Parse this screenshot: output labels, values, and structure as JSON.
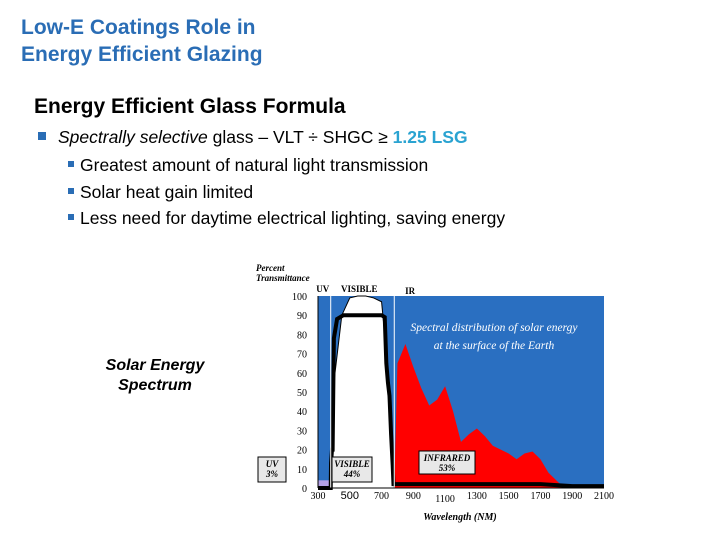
{
  "slide": {
    "title_line1": "Low-E Coatings Role in",
    "title_line2": "Energy Efficient Glazing"
  },
  "formula": {
    "heading": "Energy Efficient Glass Formula",
    "main_bullet": {
      "italic": "Spectrally selective",
      "text": " glass – VLT ÷ SHGC ≥ ",
      "highlight": "1.25 LSG"
    },
    "sub_bullets": [
      "Greatest amount of natural light transmission",
      "Solar heat gain limited",
      "Less need for daytime electrical lighting, saving energy"
    ]
  },
  "spectrum_label": {
    "line1": "Solar Energy",
    "line2": "Spectrum"
  },
  "colors": {
    "title": "#2a6db5",
    "bullet": "#2a6db5",
    "lsg": "#2aa3d1",
    "plot_background": "#2a6fc1",
    "solar_distribution": "#ff0000",
    "uv_band": "#b3a0e6",
    "transmittance_line": "#000000"
  },
  "chart_data": {
    "type": "area",
    "ylabel": "Percent Transmittance",
    "xlabel": "Wavelength (NM)",
    "ylim": [
      0,
      100
    ],
    "xlim": [
      300,
      2100
    ],
    "y_ticks": [
      "0",
      "10",
      "20",
      "30",
      "40",
      "50",
      "60",
      "70",
      "80",
      "90",
      "100"
    ],
    "x_ticks": [
      {
        "value": 300,
        "label": "300"
      },
      {
        "value": 500,
        "label": "500"
      },
      {
        "value": 700,
        "label": "700"
      },
      {
        "value": 900,
        "label": "900"
      },
      {
        "value": 1100,
        "label": "1100"
      },
      {
        "value": 1300,
        "label": "1300"
      },
      {
        "value": 1500,
        "label": "1500"
      },
      {
        "value": 1700,
        "label": "1700"
      },
      {
        "value": 1900,
        "label": "1900"
      },
      {
        "value": 2100,
        "label": "2100"
      }
    ],
    "band_labels": {
      "uv": "UV",
      "visible": "VISIBLE",
      "ir": "IR"
    },
    "band_boundaries": [
      380,
      780
    ],
    "annotation": "Spectral distribution of solar energy at the surface of the Earth",
    "boxes": [
      {
        "name": "UV",
        "value": "3%",
        "x": 300
      },
      {
        "name": "VISIBLE",
        "value": "44%",
        "x": 500
      },
      {
        "name": "INFRARED",
        "value": "53%",
        "x": 1300
      }
    ],
    "series": [
      {
        "key": "visible",
        "x": [
          380,
          400,
          450,
          500,
          550,
          600,
          650,
          700,
          720,
          750,
          780
        ],
        "values": [
          0,
          55,
          90,
          99,
          100,
          100,
          99,
          97,
          80,
          40,
          0
        ]
      },
      {
        "key": "infrared",
        "x": [
          780,
          800,
          850,
          900,
          950,
          1000,
          1050,
          1100,
          1150,
          1200,
          1250,
          1300,
          1350,
          1400,
          1450,
          1500,
          1550,
          1600,
          1650,
          1700,
          1750,
          1800,
          1850
        ],
        "values": [
          0,
          65,
          75,
          63,
          52,
          43,
          46,
          53,
          40,
          24,
          28,
          31,
          27,
          22,
          20,
          18,
          15,
          18,
          19,
          15,
          8,
          4,
          0
        ]
      },
      {
        "key": "glass",
        "x": [
          300,
          380,
          382,
          388,
          392,
          396,
          400,
          420,
          460,
          500,
          600,
          700,
          720,
          730,
          740,
          750,
          760,
          770,
          775,
          900,
          1100,
          1300,
          1500,
          1700,
          1900,
          2100
        ],
        "values": [
          0,
          0,
          13,
          20,
          20,
          50,
          78,
          88,
          90,
          90,
          90,
          90,
          89,
          65,
          55,
          48,
          28,
          12,
          2,
          2,
          2,
          2,
          2,
          2,
          1,
          1
        ]
      }
    ]
  }
}
